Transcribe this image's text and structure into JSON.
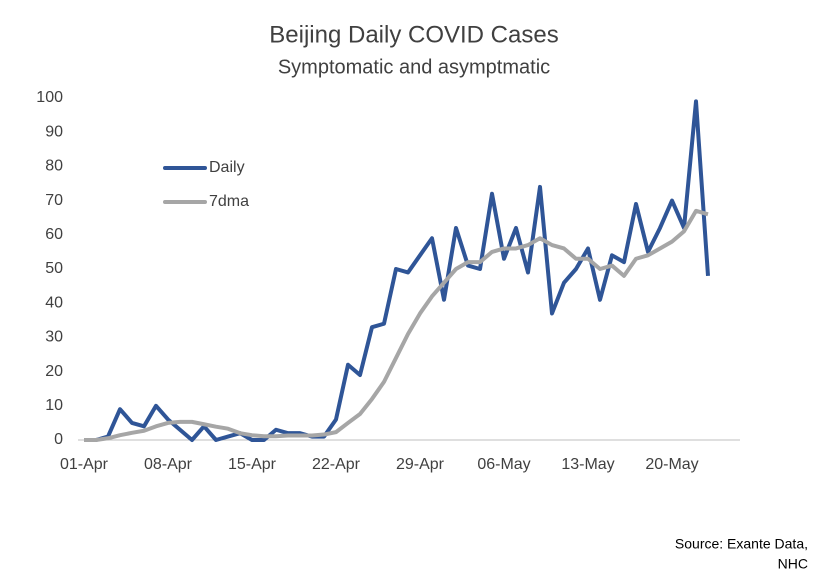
{
  "chart_data": {
    "type": "line",
    "title": "Beijing Daily COVID Cases",
    "subtitle": "Symptomatic and asymptmatic",
    "source": [
      "Source: Exante Data,",
      "NHC"
    ],
    "categories": [
      "01-Apr",
      null,
      null,
      null,
      null,
      null,
      null,
      "08-Apr",
      null,
      null,
      null,
      null,
      null,
      null,
      "15-Apr",
      null,
      null,
      null,
      null,
      null,
      null,
      "22-Apr",
      null,
      null,
      null,
      null,
      null,
      null,
      "29-Apr",
      null,
      null,
      null,
      null,
      null,
      null,
      "06-May",
      null,
      null,
      null,
      null,
      null,
      null,
      "13-May",
      null,
      null,
      null,
      null,
      null,
      null,
      "20-May",
      null,
      null,
      null
    ],
    "series": [
      {
        "name": "Daily",
        "color": "#2f5597",
        "values": [
          0,
          0,
          1,
          9,
          5,
          4,
          10,
          6,
          3,
          0,
          4,
          0,
          1,
          2,
          0,
          0,
          3,
          2,
          2,
          1,
          1,
          6,
          22,
          19,
          33,
          34,
          50,
          49,
          54,
          59,
          41,
          62,
          51,
          50,
          72,
          53,
          62,
          49,
          74,
          37,
          46,
          50,
          56,
          41,
          54,
          52,
          69,
          55,
          62,
          70,
          62,
          99,
          48
        ]
      },
      {
        "name": "7dma",
        "color": "#a6a6a6",
        "values": [
          0,
          0,
          0.5,
          1.4,
          2.1,
          2.7,
          4,
          5,
          5.3,
          5.3,
          4.6,
          3.9,
          3.3,
          2,
          1.4,
          1.1,
          1.1,
          1.3,
          1.3,
          1.3,
          1.6,
          2.3,
          5,
          7.6,
          12,
          17,
          24,
          31,
          37,
          42,
          46,
          50,
          52,
          52,
          55,
          56,
          56,
          57,
          59,
          57,
          56,
          53,
          53,
          50,
          51,
          48,
          53,
          54,
          56,
          58,
          61,
          67,
          66
        ]
      }
    ],
    "ylim": [
      0,
      100
    ],
    "yticks": [
      0,
      10,
      20,
      30,
      40,
      50,
      60,
      70,
      80,
      90,
      100
    ],
    "grid": false,
    "legend": "upper left"
  }
}
